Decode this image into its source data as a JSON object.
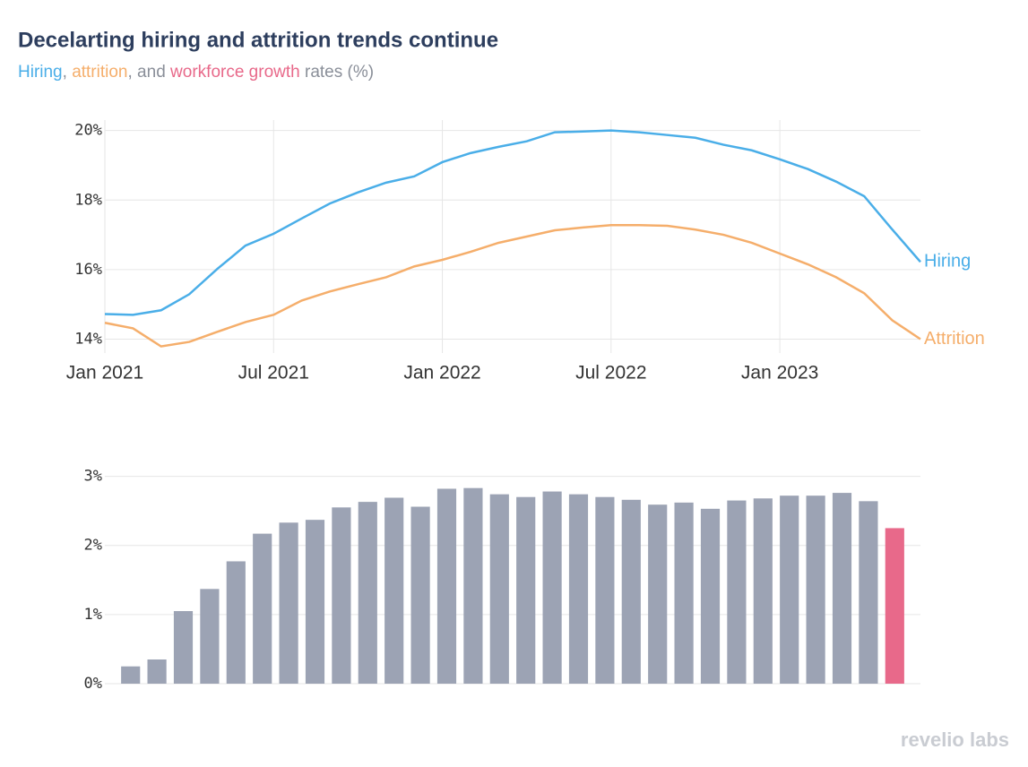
{
  "title": "Decelarting hiring and attrition trends continue",
  "subtitle": [
    {
      "text": "Hiring",
      "color": "#4aaee8"
    },
    {
      "text": ", ",
      "color": "#8a8f99"
    },
    {
      "text": "attrition",
      "color": "#f5ae6b"
    },
    {
      "text": ", and ",
      "color": "#8a8f99"
    },
    {
      "text": "workforce growth",
      "color": "#e8698a"
    },
    {
      "text": " rates (%)",
      "color": "#8a8f99"
    }
  ],
  "logo": "revelio labs",
  "chart_data": [
    {
      "type": "line",
      "x": [
        "2021-01",
        "2021-02",
        "2021-03",
        "2021-04",
        "2021-05",
        "2021-06",
        "2021-07",
        "2021-08",
        "2021-09",
        "2021-10",
        "2021-11",
        "2021-12",
        "2022-01",
        "2022-02",
        "2022-03",
        "2022-04",
        "2022-05",
        "2022-06",
        "2022-07",
        "2022-08",
        "2022-09",
        "2022-10",
        "2022-11",
        "2022-12",
        "2023-01",
        "2023-02",
        "2023-03",
        "2023-04",
        "2023-05",
        "2023-06"
      ],
      "xlim": [
        "2021-01",
        "2023-06"
      ],
      "xticks": [
        {
          "value": "2021-01",
          "label": "Jan 2021"
        },
        {
          "value": "2021-07",
          "label": "Jul 2021"
        },
        {
          "value": "2022-01",
          "label": "Jan 2022"
        },
        {
          "value": "2022-07",
          "label": "Jul 2022"
        },
        {
          "value": "2023-01",
          "label": "Jan 2023"
        }
      ],
      "ylim": [
        13.6,
        20.3
      ],
      "yticks": [
        {
          "value": 14,
          "label": "14%"
        },
        {
          "value": 16,
          "label": "16%"
        },
        {
          "value": 18,
          "label": "18%"
        },
        {
          "value": 20,
          "label": "20%"
        }
      ],
      "grid": true,
      "series": [
        {
          "name": "Hiring",
          "color": "#4aaee8",
          "values": [
            14.72,
            14.7,
            14.83,
            15.29,
            16.02,
            16.69,
            17.03,
            17.47,
            17.9,
            18.22,
            18.5,
            18.68,
            19.09,
            19.35,
            19.53,
            19.69,
            19.95,
            19.97,
            20.0,
            19.95,
            19.87,
            19.79,
            19.59,
            19.43,
            19.17,
            18.89,
            18.53,
            18.11,
            17.15,
            16.22
          ]
        },
        {
          "name": "Attrition",
          "color": "#f5ae6b",
          "values": [
            14.47,
            14.31,
            13.79,
            13.92,
            14.21,
            14.49,
            14.7,
            15.11,
            15.37,
            15.58,
            15.78,
            16.09,
            16.28,
            16.51,
            16.77,
            16.95,
            17.13,
            17.21,
            17.28,
            17.28,
            17.26,
            17.15,
            17.0,
            16.77,
            16.46,
            16.15,
            15.78,
            15.32,
            14.54,
            14.0
          ]
        }
      ]
    },
    {
      "type": "bar",
      "values": [
        0.25,
        0.35,
        1.05,
        1.37,
        1.77,
        2.17,
        2.33,
        2.37,
        2.55,
        2.63,
        2.69,
        2.56,
        2.82,
        2.83,
        2.74,
        2.7,
        2.78,
        2.74,
        2.7,
        2.66,
        2.59,
        2.62,
        2.53,
        2.65,
        2.68,
        2.72,
        2.72,
        2.76,
        2.64,
        2.25
      ],
      "colors": [
        "#9ca3b4",
        "#9ca3b4",
        "#9ca3b4",
        "#9ca3b4",
        "#9ca3b4",
        "#9ca3b4",
        "#9ca3b4",
        "#9ca3b4",
        "#9ca3b4",
        "#9ca3b4",
        "#9ca3b4",
        "#9ca3b4",
        "#9ca3b4",
        "#9ca3b4",
        "#9ca3b4",
        "#9ca3b4",
        "#9ca3b4",
        "#9ca3b4",
        "#9ca3b4",
        "#9ca3b4",
        "#9ca3b4",
        "#9ca3b4",
        "#9ca3b4",
        "#9ca3b4",
        "#9ca3b4",
        "#9ca3b4",
        "#9ca3b4",
        "#9ca3b4",
        "#9ca3b4",
        "#e8698a"
      ],
      "ylim": [
        0,
        3.15
      ],
      "yticks": [
        {
          "value": 0,
          "label": "0%"
        },
        {
          "value": 1,
          "label": "1%"
        },
        {
          "value": 2,
          "label": "2%"
        },
        {
          "value": 3,
          "label": "3%"
        }
      ],
      "grid": true
    }
  ]
}
